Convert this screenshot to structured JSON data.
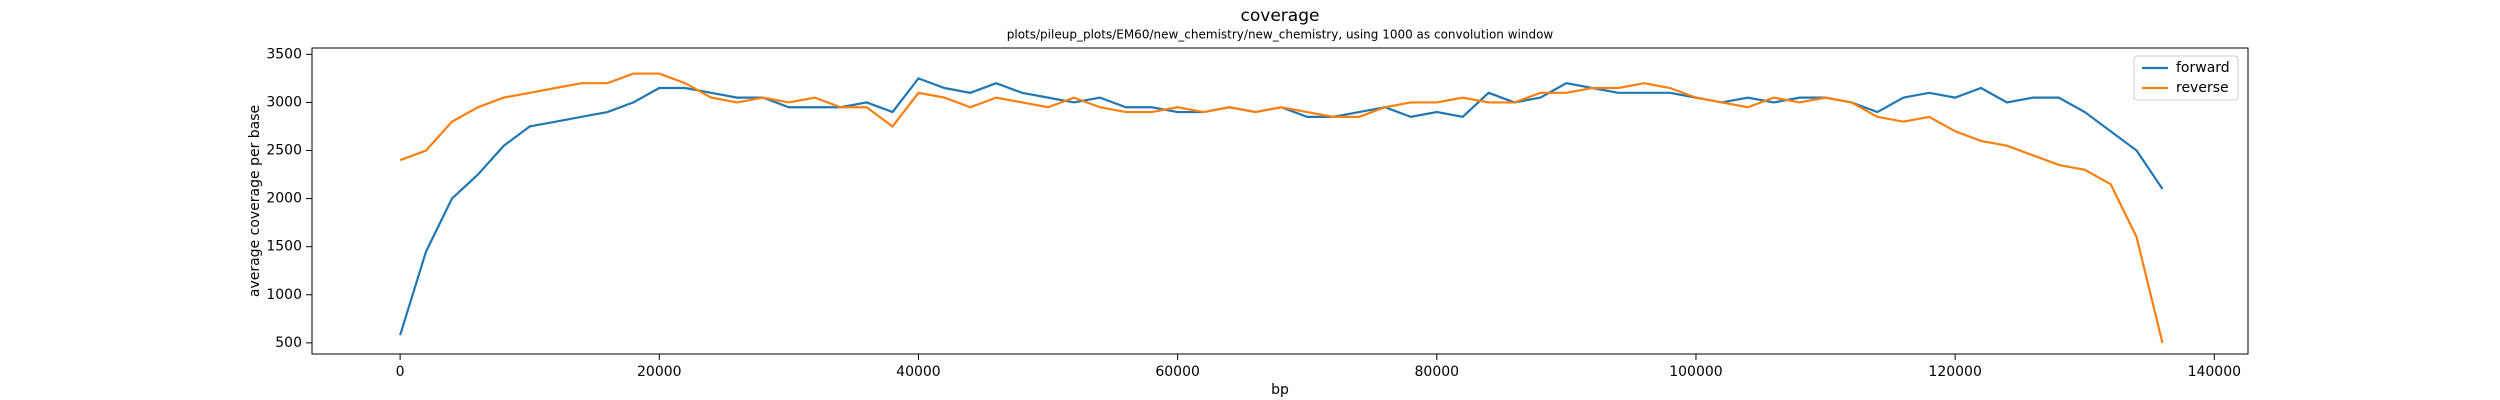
{
  "chart_data": {
    "type": "line",
    "title": "coverage",
    "subtitle": "plots/pileup_plots/EM60/new_chemistry/new_chemistry, using 1000 as convolution window",
    "x_label": "bp",
    "y_label": "average coverage per base",
    "x": [
      0,
      2000,
      4000,
      6000,
      8000,
      10000,
      12000,
      14000,
      16000,
      18000,
      20000,
      22000,
      24000,
      26000,
      28000,
      30000,
      32000,
      34000,
      36000,
      38000,
      40000,
      42000,
      44000,
      46000,
      48000,
      50000,
      52000,
      54000,
      56000,
      58000,
      60000,
      62000,
      64000,
      66000,
      68000,
      70000,
      72000,
      74000,
      76000,
      78000,
      80000,
      82000,
      84000,
      86000,
      88000,
      90000,
      92000,
      94000,
      96000,
      98000,
      100000,
      102000,
      104000,
      106000,
      108000,
      110000,
      112000,
      114000,
      116000,
      118000,
      120000,
      122000,
      124000,
      126000,
      128000,
      130000,
      132000,
      134000,
      136000
    ],
    "series": [
      {
        "name": "forward",
        "color": "#1f77b4",
        "values": [
          580,
          1450,
          2000,
          2250,
          2550,
          2750,
          2800,
          2850,
          2900,
          3000,
          3150,
          3150,
          3100,
          3050,
          3050,
          2950,
          2950,
          2950,
          3000,
          2900,
          3250,
          3150,
          3100,
          3200,
          3100,
          3050,
          3000,
          3050,
          2950,
          2950,
          2900,
          2900,
          2950,
          2900,
          2950,
          2850,
          2850,
          2900,
          2950,
          2850,
          2900,
          2850,
          3100,
          3000,
          3050,
          3200,
          3150,
          3100,
          3100,
          3100,
          3050,
          3000,
          3050,
          3000,
          3050,
          3050,
          3000,
          2900,
          3050,
          3100,
          3050,
          3150,
          3000,
          3050,
          3050,
          2900,
          2700,
          2500,
          2100
        ]
      },
      {
        "name": "reverse",
        "color": "#ff7f0e",
        "values": [
          2400,
          2500,
          2800,
          2950,
          3050,
          3100,
          3150,
          3200,
          3200,
          3300,
          3300,
          3200,
          3050,
          3000,
          3050,
          3000,
          3050,
          2950,
          2950,
          2750,
          3100,
          3050,
          2950,
          3050,
          3000,
          2950,
          3050,
          2950,
          2900,
          2900,
          2950,
          2900,
          2950,
          2900,
          2950,
          2900,
          2850,
          2850,
          2950,
          3000,
          3000,
          3050,
          3000,
          3000,
          3100,
          3100,
          3150,
          3150,
          3200,
          3150,
          3050,
          3000,
          2950,
          3050,
          3000,
          3050,
          3000,
          2850,
          2800,
          2850,
          2700,
          2600,
          2550,
          2450,
          2350,
          2300,
          2150,
          1600,
          500
        ]
      }
    ],
    "xlim": [
      -6800,
      142600
    ],
    "xticks": [
      0,
      20000,
      40000,
      60000,
      80000,
      100000,
      120000,
      140000
    ],
    "ylim": [
      384,
      3566
    ],
    "yticks": [
      500,
      1000,
      1500,
      2000,
      2500,
      3000,
      3500
    ],
    "legend": "upper right",
    "grid": false
  }
}
